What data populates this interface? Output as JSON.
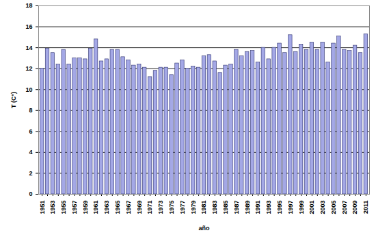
{
  "chart_data": {
    "type": "bar",
    "categories": [
      "1951",
      null,
      "1953",
      null,
      "1955",
      null,
      "1957",
      null,
      "1959",
      null,
      "1961",
      null,
      "1963",
      null,
      "1965",
      null,
      "1967",
      null,
      "1969",
      null,
      "1971",
      null,
      "1973",
      null,
      "1975",
      null,
      "1977",
      null,
      "1979",
      null,
      "1981",
      null,
      "1983",
      null,
      "1985",
      null,
      "1987",
      null,
      "1989",
      null,
      "1991",
      null,
      "1993",
      null,
      "1995",
      null,
      "1997",
      null,
      "1999",
      null,
      "2001",
      null,
      "2003",
      null,
      "2005",
      null,
      "2007",
      null,
      "2009",
      null,
      "2011"
    ],
    "values": [
      12.0,
      13.9,
      13.5,
      12.4,
      13.8,
      12.4,
      13.0,
      13.0,
      12.9,
      13.9,
      14.8,
      12.7,
      12.9,
      13.8,
      13.8,
      13.1,
      12.8,
      12.3,
      12.4,
      12.1,
      11.2,
      11.8,
      12.1,
      12.1,
      11.4,
      12.5,
      12.8,
      12.0,
      12.2,
      12.1,
      13.2,
      13.3,
      12.7,
      11.6,
      12.3,
      12.4,
      13.8,
      13.2,
      13.6,
      13.7,
      12.6,
      14.0,
      12.9,
      14.0,
      14.4,
      13.5,
      15.2,
      13.6,
      14.3,
      13.8,
      14.5,
      13.8,
      14.5,
      12.6,
      14.4,
      15.1,
      13.8,
      13.7,
      14.2,
      13.5,
      15.3
    ],
    "x_label": "año",
    "y_label": "T (C°)",
    "color": "#a4a8e6",
    "ylim": [
      0,
      18
    ],
    "yticks": [
      0,
      2,
      4,
      6,
      8,
      10,
      12,
      14,
      16,
      18
    ],
    "grid": true
  }
}
